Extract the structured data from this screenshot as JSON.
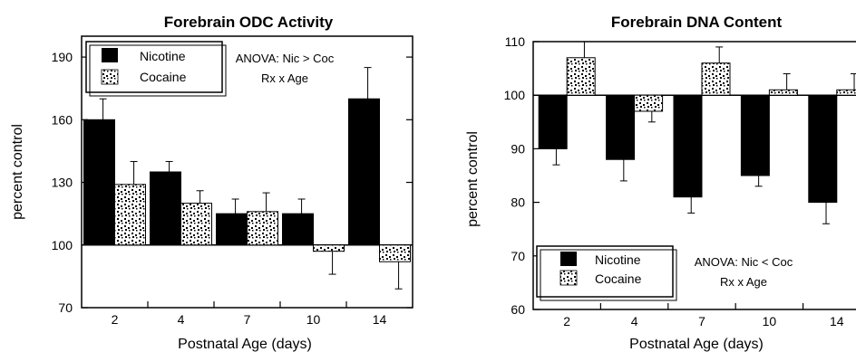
{
  "colors": {
    "nicotine": "#000000",
    "cocaine_pattern": "stipple"
  },
  "chart_data": [
    {
      "type": "bar",
      "title": "Forebrain  ODC Activity",
      "xlabel": "Postnatal Age (days)",
      "ylabel": "percent control",
      "baseline": 100,
      "ylim": [
        70,
        200
      ],
      "yticks": [
        70,
        100,
        130,
        160,
        190
      ],
      "categories": [
        "2",
        "4",
        "7",
        "10",
        "14"
      ],
      "series": [
        {
          "name": "Nicotine",
          "values": [
            160,
            135,
            115,
            115,
            170
          ],
          "err": [
            10,
            5,
            7,
            7,
            15
          ]
        },
        {
          "name": "Cocaine",
          "values": [
            129,
            120,
            116,
            97,
            92
          ],
          "err": [
            11,
            6,
            9,
            11,
            13
          ]
        }
      ],
      "legend": {
        "placement": "top-left",
        "items": [
          "Nicotine",
          "Cocaine"
        ]
      },
      "annotation": [
        "ANOVA: Nic > Coc",
        "Rx x Age"
      ]
    },
    {
      "type": "bar",
      "title": "Forebrain  DNA Content",
      "xlabel": "Postnatal Age (days)",
      "ylabel": "percent control",
      "baseline": 100,
      "ylim": [
        60,
        110
      ],
      "yticks": [
        60,
        70,
        80,
        90,
        100,
        110
      ],
      "categories": [
        "2",
        "4",
        "7",
        "10",
        "14"
      ],
      "series": [
        {
          "name": "Nicotine",
          "values": [
            90,
            88,
            81,
            85,
            80
          ],
          "err": [
            3,
            4,
            3,
            2,
            4
          ]
        },
        {
          "name": "Cocaine",
          "values": [
            107,
            97,
            106,
            101,
            101
          ],
          "err": [
            3,
            2,
            3,
            3,
            3
          ]
        }
      ],
      "legend": {
        "placement": "bottom-left",
        "items": [
          "Nicotine",
          "Cocaine"
        ]
      },
      "annotation": [
        "ANOVA:  Nic < Coc",
        "Rx x Age"
      ]
    }
  ]
}
